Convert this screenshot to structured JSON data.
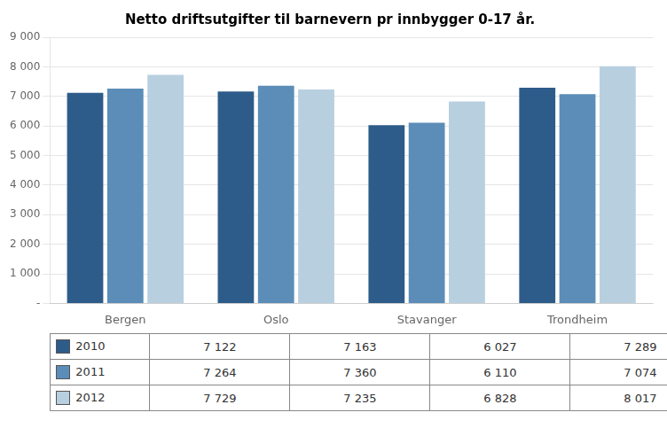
{
  "chart_data": {
    "type": "bar",
    "title": "Netto driftsutgifter til barnevern pr innbygger 0-17 år.",
    "categories": [
      "Bergen",
      "Oslo",
      "Stavanger",
      "Trondheim"
    ],
    "series": [
      {
        "name": "2010",
        "color": "#2e5c8a",
        "values": [
          7122,
          7163,
          6027,
          7289
        ],
        "value_labels": [
          "7 122",
          "7 163",
          "6 027",
          "7 289"
        ]
      },
      {
        "name": "2011",
        "color": "#5b8db8",
        "values": [
          7264,
          7360,
          6110,
          7074
        ],
        "value_labels": [
          "7 264",
          "7 360",
          "6 110",
          "7 074"
        ]
      },
      {
        "name": "2012",
        "color": "#b8cfe0",
        "values": [
          7729,
          7235,
          6828,
          8017
        ],
        "value_labels": [
          "7 729",
          "7 235",
          "6 828",
          "8 017"
        ]
      }
    ],
    "ylim": [
      0,
      9000
    ],
    "yticks": [
      {
        "value": 0,
        "label": "-"
      },
      {
        "value": 1000,
        "label": "1 000"
      },
      {
        "value": 2000,
        "label": "2 000"
      },
      {
        "value": 3000,
        "label": "3 000"
      },
      {
        "value": 4000,
        "label": "4 000"
      },
      {
        "value": 5000,
        "label": "5 000"
      },
      {
        "value": 6000,
        "label": "6 000"
      },
      {
        "value": 7000,
        "label": "7 000"
      },
      {
        "value": 8000,
        "label": "8 000"
      },
      {
        "value": 9000,
        "label": "9 000"
      }
    ],
    "grid": true
  }
}
